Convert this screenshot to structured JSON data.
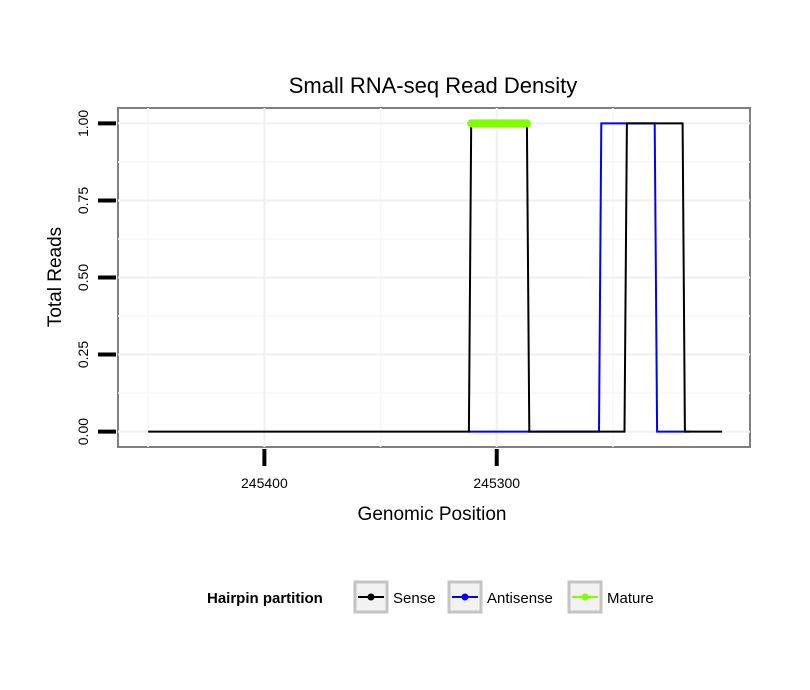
{
  "chart_data": {
    "type": "line",
    "title": "Small RNA-seq Read Density",
    "xlabel": "Genomic Position",
    "ylabel": "Total Reads",
    "x_reversed": true,
    "xlim": [
      245463,
      245191
    ],
    "ylim": [
      -0.05,
      1.05
    ],
    "x_ticks": [
      245400,
      245300
    ],
    "y_ticks": [
      0,
      0.25,
      0.5,
      0.75,
      1.0
    ],
    "y_tick_labels": [
      "0.00",
      "0.25",
      "0.50",
      "0.75",
      "1.00"
    ],
    "grid": true,
    "legend": {
      "title": "Hairpin partition",
      "position": "bottom",
      "entries": [
        {
          "name": "Sense",
          "color": "#000000"
        },
        {
          "name": "Antisense",
          "color": "#0000ff"
        },
        {
          "name": "Mature",
          "color": "#7fff00"
        }
      ]
    },
    "series": [
      {
        "name": "Sense",
        "color": "#000000",
        "x": [
          245450,
          245312,
          245311,
          245287,
          245286,
          245245,
          245244,
          245220,
          245219,
          245203
        ],
        "y": [
          0,
          0,
          1,
          1,
          0,
          0,
          1,
          1,
          0,
          0
        ]
      },
      {
        "name": "Antisense",
        "color": "#0000ff",
        "x": [
          245312,
          245256,
          245255,
          245232,
          245231,
          245217
        ],
        "y": [
          0,
          0,
          1,
          1,
          0,
          0
        ]
      },
      {
        "name": "Mature",
        "color": "#7fff00",
        "x": [
          245311,
          245287
        ],
        "y": [
          1,
          1
        ]
      }
    ]
  }
}
